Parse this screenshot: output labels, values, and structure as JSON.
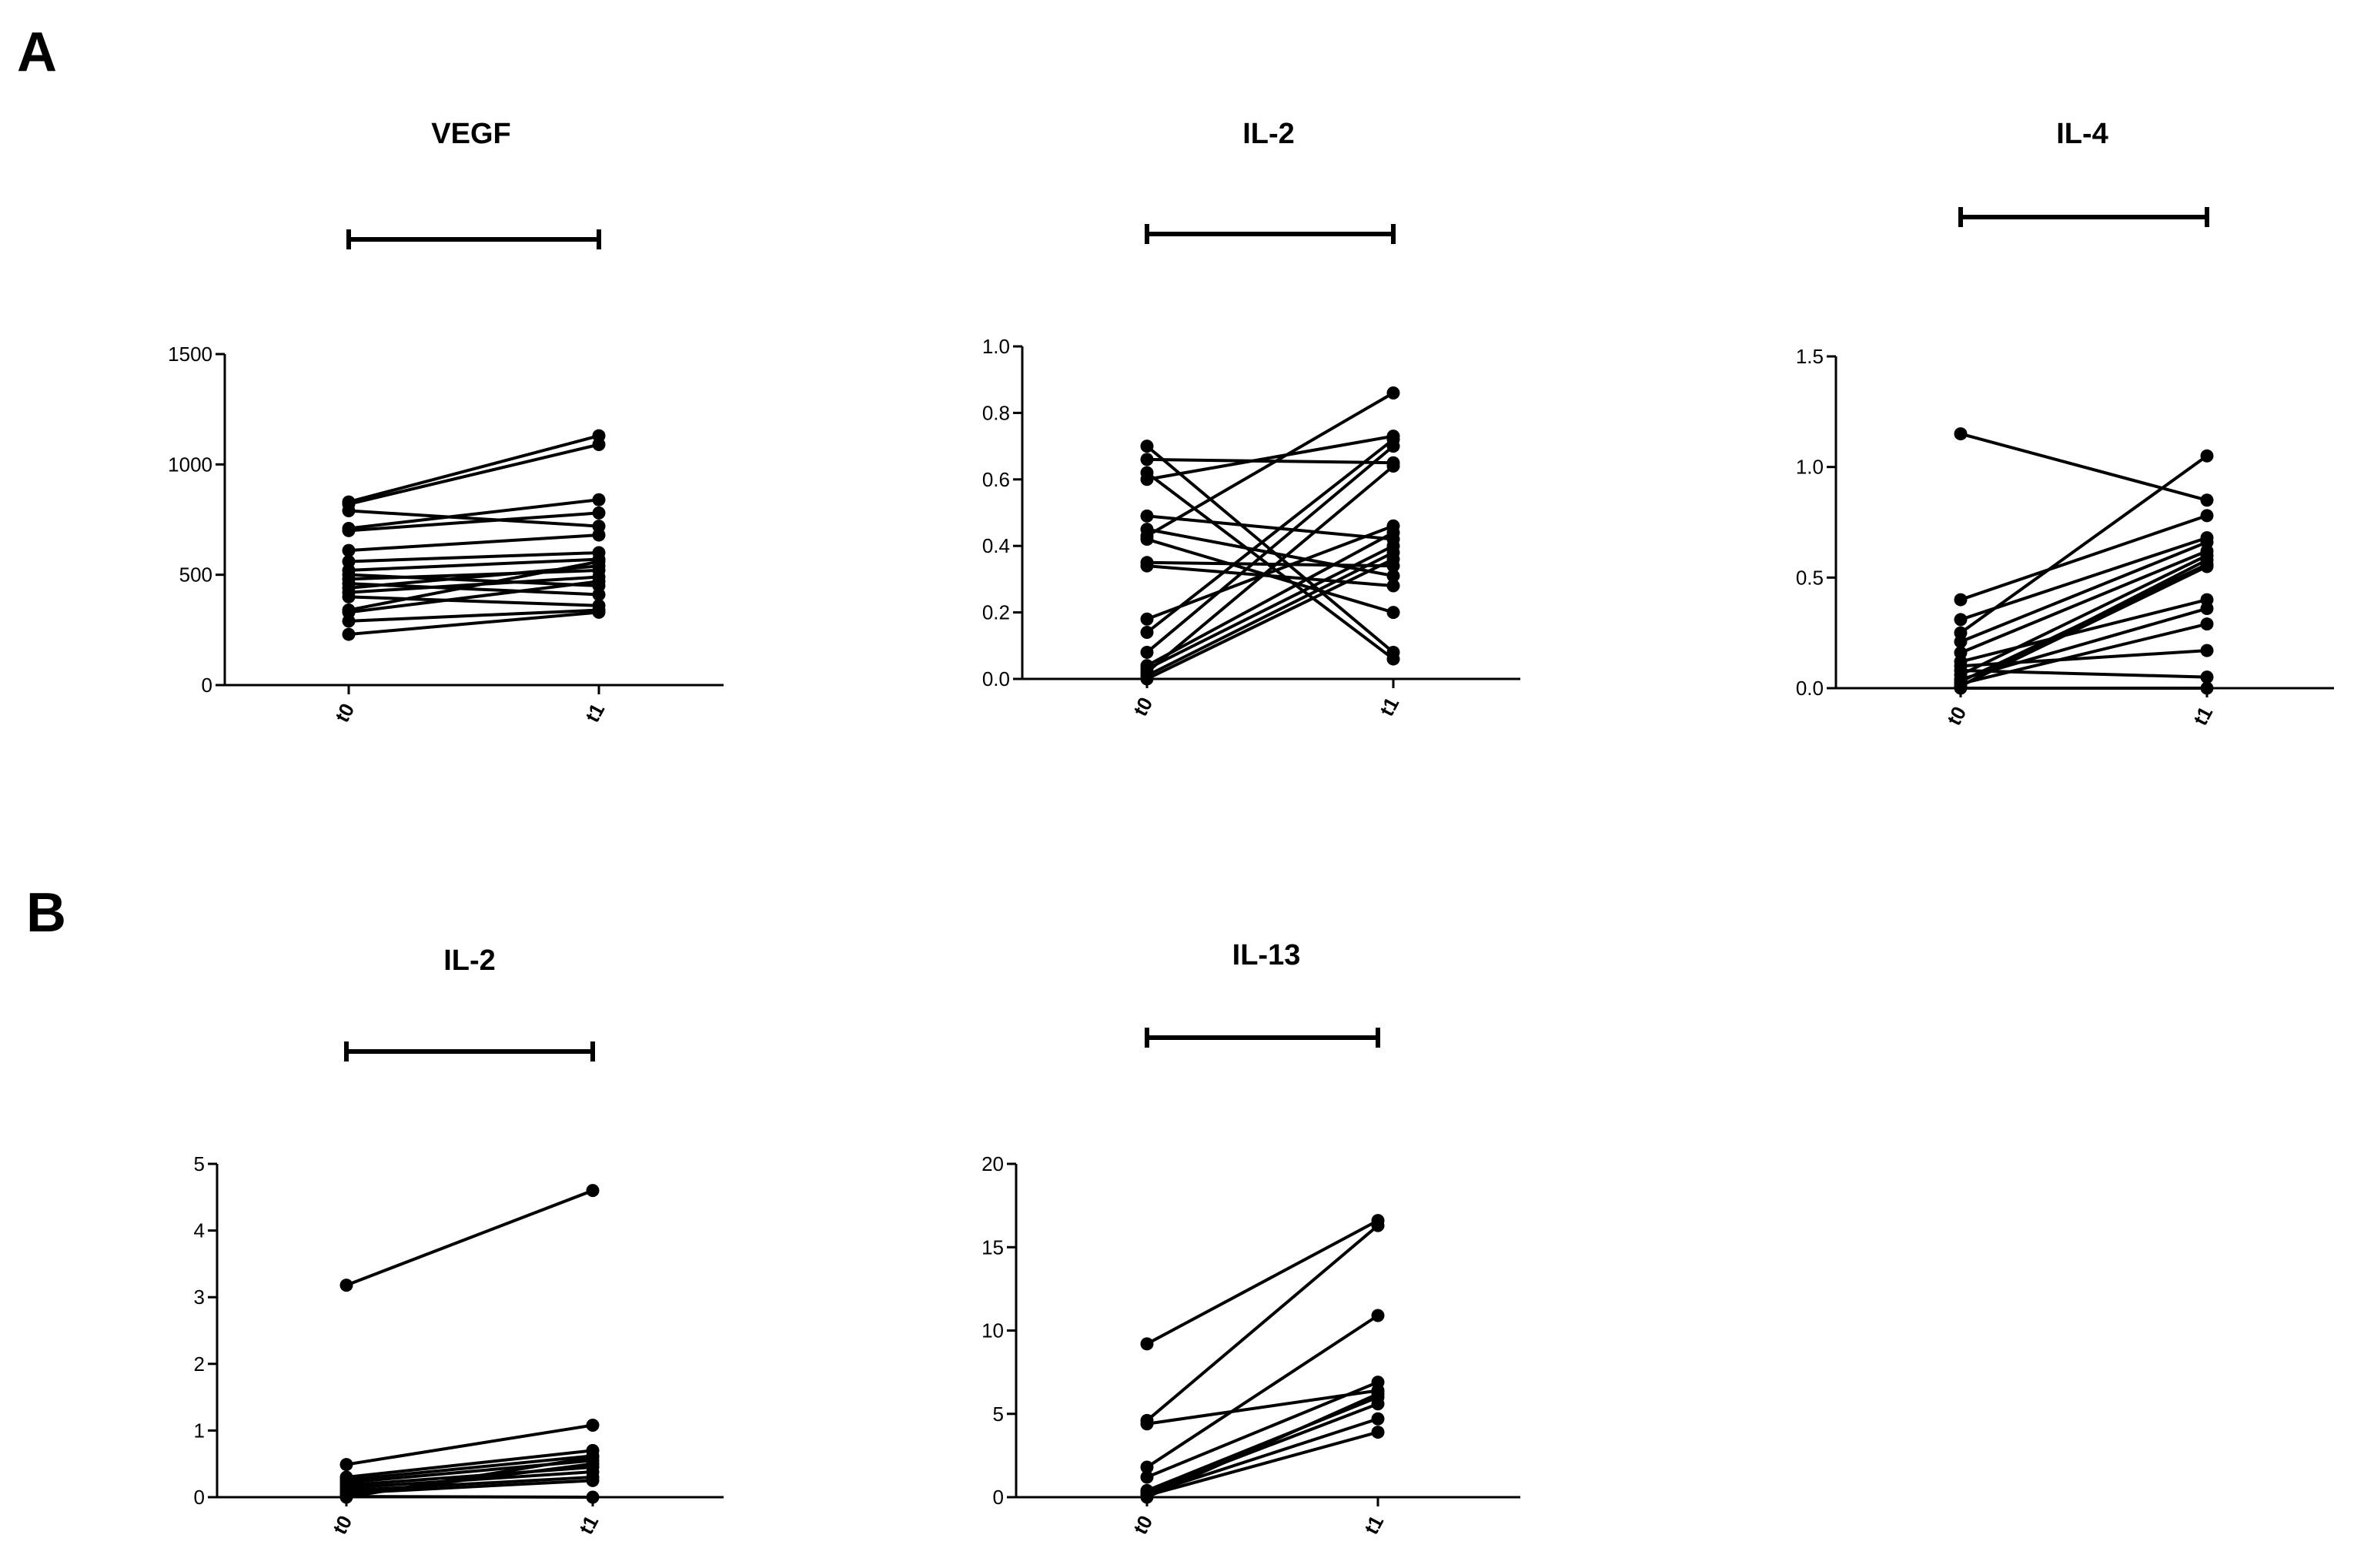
{
  "panels": [
    {
      "label": "A"
    },
    {
      "label": "B"
    }
  ],
  "chart_data": [
    {
      "type": "line",
      "title": "VEGF",
      "panel": "A",
      "categories": [
        "t0",
        "t1"
      ],
      "ylim": [
        0,
        1500
      ],
      "yticks": [
        "0",
        "500",
        "1000",
        "1500"
      ],
      "yticks_values": [
        0,
        500,
        1000,
        1500
      ],
      "xlabel": "",
      "ylabel": "",
      "significance_bar": true,
      "series": [
        {
          "name": "s1",
          "values": [
            830,
            1130
          ]
        },
        {
          "name": "s2",
          "values": [
            820,
            1090
          ]
        },
        {
          "name": "s3",
          "values": [
            790,
            720
          ]
        },
        {
          "name": "s4",
          "values": [
            710,
            840
          ]
        },
        {
          "name": "s5",
          "values": [
            700,
            780
          ]
        },
        {
          "name": "s6",
          "values": [
            610,
            680
          ]
        },
        {
          "name": "s7",
          "values": [
            560,
            600
          ]
        },
        {
          "name": "s8",
          "values": [
            520,
            570
          ]
        },
        {
          "name": "s9",
          "values": [
            500,
            450
          ]
        },
        {
          "name": "s10",
          "values": [
            480,
            520
          ]
        },
        {
          "name": "s11",
          "values": [
            460,
            410
          ]
        },
        {
          "name": "s12",
          "values": [
            440,
            540
          ]
        },
        {
          "name": "s13",
          "values": [
            420,
            490
          ]
        },
        {
          "name": "s14",
          "values": [
            400,
            360
          ]
        },
        {
          "name": "s15",
          "values": [
            340,
            560
          ]
        },
        {
          "name": "s16",
          "values": [
            330,
            470
          ]
        },
        {
          "name": "s17",
          "values": [
            290,
            340
          ]
        },
        {
          "name": "s18",
          "values": [
            230,
            330
          ]
        }
      ]
    },
    {
      "type": "line",
      "title": "IL-2",
      "panel": "A",
      "categories": [
        "t0",
        "t1"
      ],
      "ylim": [
        0,
        1.0
      ],
      "yticks": [
        "0.0",
        "0.2",
        "0.4",
        "0.6",
        "0.8",
        "1.0"
      ],
      "yticks_values": [
        0,
        0.2,
        0.4,
        0.6,
        0.8,
        1.0
      ],
      "xlabel": "",
      "ylabel": "",
      "significance_bar": true,
      "series": [
        {
          "name": "s1",
          "values": [
            0.7,
            0.08
          ]
        },
        {
          "name": "s2",
          "values": [
            0.66,
            0.65
          ]
        },
        {
          "name": "s3",
          "values": [
            0.62,
            0.06
          ]
        },
        {
          "name": "s4",
          "values": [
            0.6,
            0.73
          ]
        },
        {
          "name": "s5",
          "values": [
            0.49,
            0.42
          ]
        },
        {
          "name": "s6",
          "values": [
            0.45,
            0.31
          ]
        },
        {
          "name": "s7",
          "values": [
            0.43,
            0.86
          ]
        },
        {
          "name": "s8",
          "values": [
            0.42,
            0.2
          ]
        },
        {
          "name": "s9",
          "values": [
            0.35,
            0.34
          ]
        },
        {
          "name": "s10",
          "values": [
            0.34,
            0.28
          ]
        },
        {
          "name": "s11",
          "values": [
            0.18,
            0.46
          ]
        },
        {
          "name": "s12",
          "values": [
            0.14,
            0.72
          ]
        },
        {
          "name": "s13",
          "values": [
            0.08,
            0.7
          ]
        },
        {
          "name": "s14",
          "values": [
            0.04,
            0.44
          ]
        },
        {
          "name": "s15",
          "values": [
            0.03,
            0.4
          ]
        },
        {
          "name": "s16",
          "values": [
            0.02,
            0.64
          ]
        },
        {
          "name": "s17",
          "values": [
            0.01,
            0.38
          ]
        },
        {
          "name": "s18",
          "values": [
            0.0,
            0.36
          ]
        }
      ]
    },
    {
      "type": "line",
      "title": "IL-4",
      "panel": "A",
      "categories": [
        "t0",
        "t1"
      ],
      "ylim": [
        0,
        1.5
      ],
      "yticks": [
        "0.0",
        "0.5",
        "1.0",
        "1.5"
      ],
      "yticks_values": [
        0,
        0.5,
        1.0,
        1.5
      ],
      "xlabel": "",
      "ylabel": "",
      "significance_bar": true,
      "series": [
        {
          "name": "s1",
          "values": [
            1.15,
            0.85
          ]
        },
        {
          "name": "s2",
          "values": [
            0.4,
            0.78
          ]
        },
        {
          "name": "s3",
          "values": [
            0.31,
            0.68
          ]
        },
        {
          "name": "s4",
          "values": [
            0.25,
            1.05
          ]
        },
        {
          "name": "s5",
          "values": [
            0.21,
            0.66
          ]
        },
        {
          "name": "s6",
          "values": [
            0.16,
            0.62
          ]
        },
        {
          "name": "s7",
          "values": [
            0.12,
            0.4
          ]
        },
        {
          "name": "s8",
          "values": [
            0.1,
            0.17
          ]
        },
        {
          "name": "s9",
          "values": [
            0.08,
            0.05
          ]
        },
        {
          "name": "s10",
          "values": [
            0.06,
            0.6
          ]
        },
        {
          "name": "s11",
          "values": [
            0.04,
            0.36
          ]
        },
        {
          "name": "s12",
          "values": [
            0.03,
            0.56
          ]
        },
        {
          "name": "s13",
          "values": [
            0.02,
            0.29
          ]
        },
        {
          "name": "s14",
          "values": [
            0.01,
            0.58
          ]
        },
        {
          "name": "s15",
          "values": [
            0.01,
            0.55
          ]
        },
        {
          "name": "s16",
          "values": [
            0.0,
            0.0
          ]
        }
      ]
    },
    {
      "type": "line",
      "title": "IL-2",
      "panel": "B",
      "categories": [
        "t0",
        "t1"
      ],
      "ylim": [
        0,
        5
      ],
      "yticks": [
        "0",
        "1",
        "2",
        "3",
        "4",
        "5"
      ],
      "yticks_values": [
        0,
        1,
        2,
        3,
        4,
        5
      ],
      "xlabel": "",
      "ylabel": "",
      "significance_bar": true,
      "series": [
        {
          "name": "s1",
          "values": [
            3.18,
            4.6
          ]
        },
        {
          "name": "s2",
          "values": [
            0.49,
            1.08
          ]
        },
        {
          "name": "s3",
          "values": [
            0.3,
            0.7
          ]
        },
        {
          "name": "s4",
          "values": [
            0.26,
            0.62
          ]
        },
        {
          "name": "s5",
          "values": [
            0.22,
            0.55
          ]
        },
        {
          "name": "s6",
          "values": [
            0.18,
            0.45
          ]
        },
        {
          "name": "s7",
          "values": [
            0.14,
            0.38
          ]
        },
        {
          "name": "s8",
          "values": [
            0.1,
            0.3
          ]
        },
        {
          "name": "s9",
          "values": [
            0.06,
            0.25
          ]
        },
        {
          "name": "s10",
          "values": [
            0.03,
            0.5
          ]
        },
        {
          "name": "s11",
          "values": [
            0.01,
            0.0
          ]
        },
        {
          "name": "s12",
          "values": [
            0.0,
            0.6
          ]
        }
      ]
    },
    {
      "type": "line",
      "title": "IL-13",
      "panel": "B",
      "categories": [
        "t0",
        "t1"
      ],
      "ylim": [
        0,
        20
      ],
      "yticks": [
        "0",
        "5",
        "10",
        "15",
        "20"
      ],
      "yticks_values": [
        0,
        5,
        10,
        15,
        20
      ],
      "xlabel": "",
      "ylabel": "",
      "significance_bar": true,
      "series": [
        {
          "name": "s1",
          "values": [
            9.2,
            16.6
          ]
        },
        {
          "name": "s2",
          "values": [
            4.6,
            16.3
          ]
        },
        {
          "name": "s3",
          "values": [
            4.4,
            6.4
          ]
        },
        {
          "name": "s4",
          "values": [
            1.8,
            10.9
          ]
        },
        {
          "name": "s5",
          "values": [
            1.2,
            6.9
          ]
        },
        {
          "name": "s6",
          "values": [
            0.4,
            6.0
          ]
        },
        {
          "name": "s7",
          "values": [
            0.3,
            5.6
          ]
        },
        {
          "name": "s8",
          "values": [
            0.2,
            4.7
          ]
        },
        {
          "name": "s9",
          "values": [
            0.1,
            3.9
          ]
        },
        {
          "name": "s10",
          "values": [
            0.0,
            6.2
          ]
        }
      ]
    }
  ]
}
